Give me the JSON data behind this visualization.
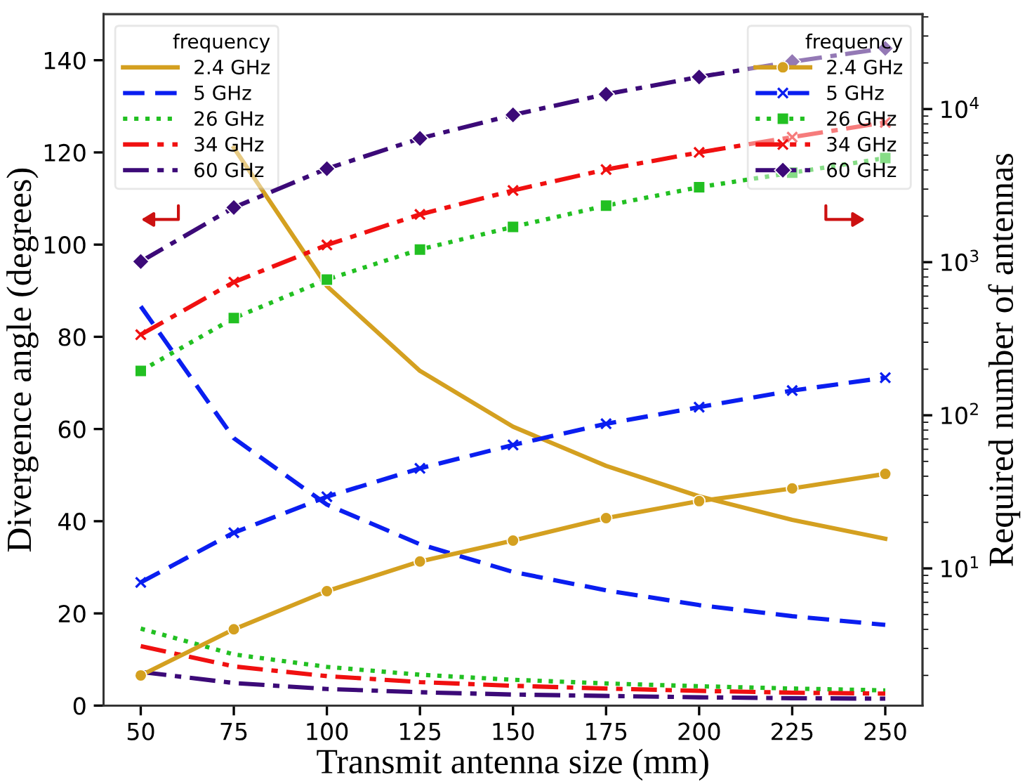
{
  "chart_data": {
    "type": "line",
    "xlabel": "Transmit antenna size (mm)",
    "ylabel": "Divergence angle (degrees)",
    "y2label": "Required number of antennas",
    "legend_title": "frequency",
    "legend": "top left",
    "grid": false,
    "log": "y2",
    "x": [
      50,
      75,
      100,
      125,
      150,
      175,
      200,
      225,
      250
    ],
    "xlim": [
      40,
      260
    ],
    "xticks": [
      50,
      75,
      100,
      125,
      150,
      175,
      200,
      225,
      250
    ],
    "ylim": [
      0,
      150
    ],
    "yticks": [
      0,
      20,
      40,
      60,
      80,
      100,
      120,
      140
    ],
    "y2lim": [
      1.27,
      41700
    ],
    "y2ticks": [
      {
        "value": 10,
        "label": "10$^{1}$"
      },
      {
        "value": 100,
        "label": "10$^{2}$"
      },
      {
        "value": 1000,
        "label": "10$^{3}$"
      },
      {
        "value": 10000,
        "label": "10$^{4}$"
      }
    ],
    "series": [
      {
        "name": "2.4 GHz",
        "color": "#d4a020",
        "line_style": "solid",
        "marker": "none",
        "values": [
          null,
          121,
          91,
          72.6,
          60.5,
          52,
          45.4,
          40.3,
          36.2
        ]
      },
      {
        "name": "5 GHz",
        "color": "#0a1ef0",
        "line_style": "dashed",
        "marker": "none",
        "values": [
          86.6,
          58,
          43.6,
          35,
          29,
          25,
          21.8,
          19.4,
          17.5
        ]
      },
      {
        "name": "26 GHz",
        "color": "#22c022",
        "line_style": "dotted",
        "marker": "none",
        "values": [
          16.7,
          11.1,
          8.4,
          6.7,
          5.6,
          4.8,
          4.2,
          3.7,
          3.3
        ]
      },
      {
        "name": "34 GHz",
        "color": "#f01010",
        "line_style": "dashdot",
        "marker": "none",
        "values": [
          12.9,
          8.5,
          6.4,
          5.1,
          4.3,
          3.7,
          3.2,
          2.8,
          2.6
        ]
      },
      {
        "name": "60 GHz",
        "color": "#3c0a78",
        "line_style": "dashdot",
        "marker": "none",
        "values": [
          7.3,
          4.9,
          3.6,
          2.9,
          2.4,
          2.1,
          1.8,
          1.6,
          1.5
        ]
      },
      {
        "name": "2.4 GHz",
        "color": "#d4a020",
        "axis": "y2",
        "line_style": "solid",
        "marker": "circle",
        "values": [
          2.0,
          4.0,
          7.1,
          11.1,
          15.2,
          21.3,
          27.5,
          33.3,
          41.4
        ]
      },
      {
        "name": "5 GHz",
        "color": "#0a1ef0",
        "axis": "y2",
        "line_style": "dashed",
        "marker": "cross",
        "values": [
          8.1,
          17.1,
          29.4,
          45,
          64,
          88,
          113,
          145,
          176
        ]
      },
      {
        "name": "26 GHz",
        "color": "#22c022",
        "axis": "y2",
        "line_style": "dotted",
        "marker": "square",
        "values": [
          195,
          431,
          770,
          1210,
          1700,
          2340,
          3090,
          3840,
          4790
        ]
      },
      {
        "name": "34 GHz",
        "color": "#f01010",
        "axis": "y2",
        "line_style": "dashdot",
        "marker": "cross",
        "values": [
          336,
          741,
          1295,
          2050,
          2940,
          4030,
          5210,
          6560,
          8180
        ]
      },
      {
        "name": "60 GHz",
        "color": "#3c0a78",
        "axis": "y2",
        "line_style": "dashdot",
        "marker": "diamond",
        "values": [
          1010,
          2275,
          4080,
          6430,
          9160,
          12500,
          16200,
          20400,
          24900
        ]
      }
    ]
  }
}
